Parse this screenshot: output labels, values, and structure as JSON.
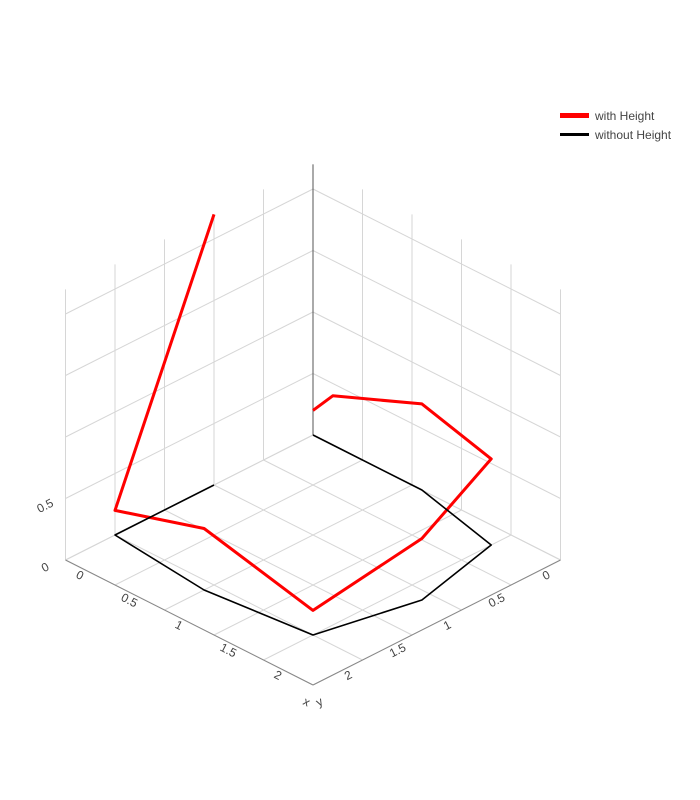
{
  "chart_data": {
    "type": "line3d",
    "axes": {
      "x": {
        "title": "x",
        "tickvals": [
          0,
          0.5,
          1,
          1.5,
          2
        ],
        "ticktext": [
          "0",
          "0.5",
          "1",
          "1.5",
          "2"
        ],
        "range": [
          0,
          2.5
        ]
      },
      "y": {
        "title": "y",
        "tickvals": [
          0,
          0.5,
          1,
          1.5,
          2
        ],
        "ticktext": [
          "0",
          "0.5",
          "1",
          "1.5",
          "2"
        ],
        "range": [
          0,
          2.5
        ]
      },
      "z": {
        "title": "",
        "tickvals": [
          0,
          0.5
        ],
        "ticktext": [
          "0",
          "0.5"
        ],
        "range": [
          0,
          2.2
        ]
      }
    },
    "grid": true,
    "legend_position": "top-right",
    "series": [
      {
        "name": "with Height",
        "color": "#ff0000",
        "x": [
          0,
          0.2,
          1.1,
          2.0,
          2.2,
          2.0,
          1.0,
          0.0,
          0.0
        ],
        "y": [
          0,
          0.0,
          0.0,
          0.2,
          1.1,
          2.0,
          2.1,
          2.0,
          1.0
        ],
        "z": [
          0.2,
          0.4,
          0.7,
          0.7,
          0.5,
          0.2,
          0.5,
          0.2,
          2.2
        ]
      },
      {
        "name": "without Height",
        "color": "#000000",
        "x": [
          0,
          0.2,
          1.1,
          2.0,
          2.2,
          2.0,
          1.0,
          0.0,
          0.0
        ],
        "y": [
          0,
          0.0,
          0.0,
          0.2,
          1.1,
          2.0,
          2.1,
          2.0,
          1.0
        ],
        "z": [
          0,
          0,
          0,
          0,
          0,
          0,
          0,
          0,
          0
        ]
      }
    ]
  }
}
